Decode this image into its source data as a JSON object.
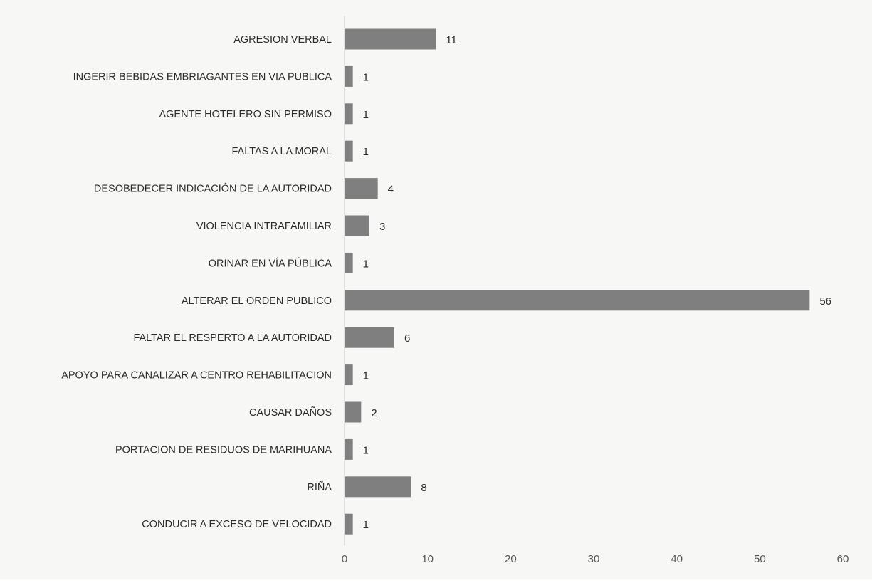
{
  "chart_data": {
    "type": "bar",
    "orientation": "horizontal",
    "categories": [
      "AGRESION VERBAL",
      "INGERIR BEBIDAS EMBRIAGANTES EN VIA PUBLICA",
      "AGENTE HOTELERO SIN PERMISO",
      "FALTAS A LA MORAL",
      "DESOBEDECER INDICACIÓN DE LA AUTORIDAD",
      "VIOLENCIA INTRAFAMILIAR",
      "ORINAR EN VÍA PÚBLICA",
      "ALTERAR EL ORDEN PUBLICO",
      "FALTAR EL RESPERTO A LA AUTORIDAD",
      "APOYO PARA CANALIZAR A CENTRO REHABILITACION",
      "CAUSAR DAÑOS",
      "PORTACION DE RESIDUOS DE MARIHUANA",
      "RIÑA",
      "CONDUCIR A EXCESO DE VELOCIDAD"
    ],
    "values": [
      11,
      1,
      1,
      1,
      4,
      3,
      1,
      56,
      6,
      1,
      2,
      1,
      8,
      1
    ],
    "data_labels": [
      "11",
      "1",
      "1",
      "1",
      "4",
      "3",
      "1",
      "56",
      "6",
      "1",
      "2",
      "1",
      "8",
      "1"
    ],
    "xlim": [
      0,
      60
    ],
    "x_ticks": [
      0,
      10,
      20,
      30,
      40,
      50,
      60
    ],
    "x_tick_labels": [
      "0",
      "10",
      "20",
      "30",
      "40",
      "50",
      "60"
    ],
    "title": "",
    "xlabel": "",
    "ylabel": "",
    "grid": false,
    "legend": "none",
    "bar_color": "#7f7f7f",
    "axis_color": "#c8c8c8",
    "text_color": "#2b2b2b"
  }
}
